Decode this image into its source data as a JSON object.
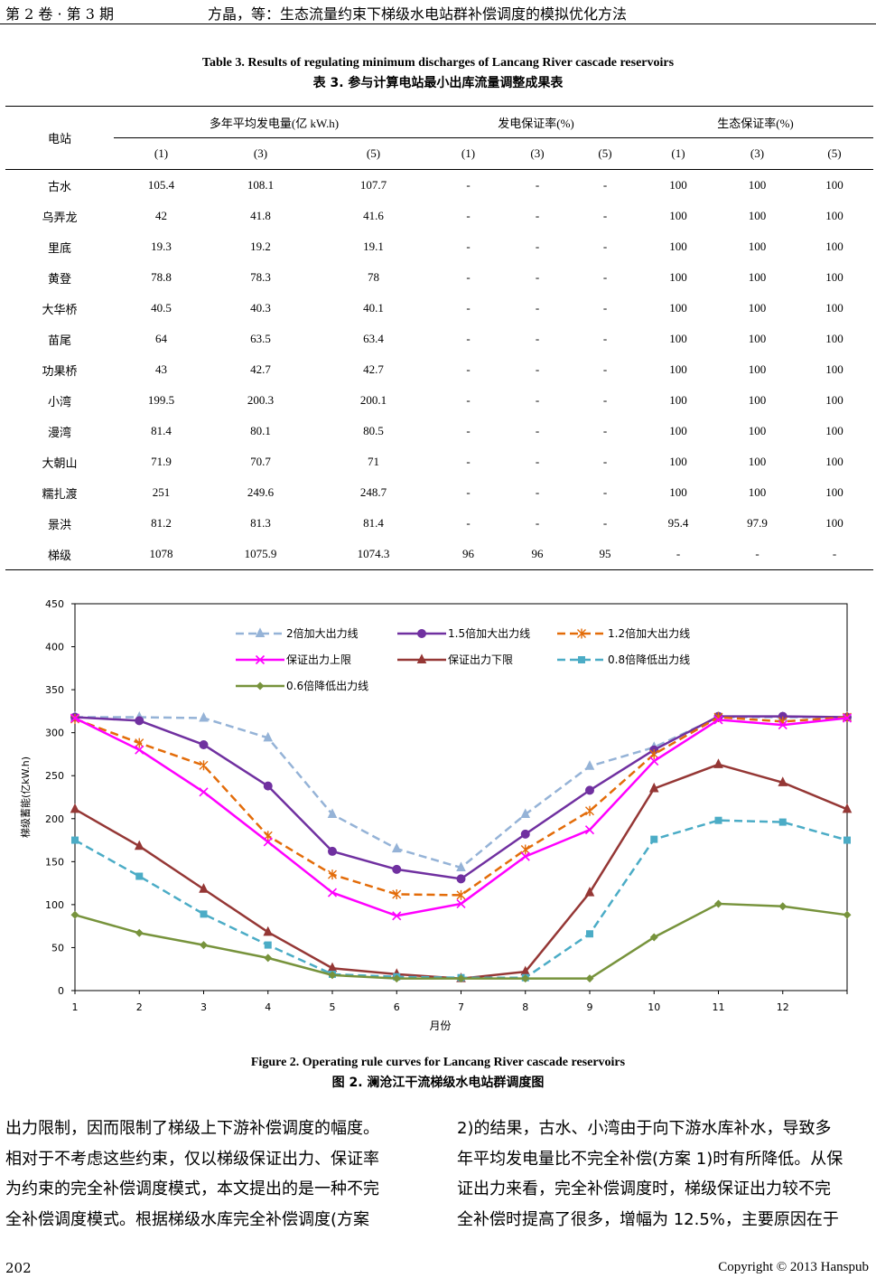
{
  "header": {
    "volume": "第 2 卷 · 第 3 期",
    "running_title": "方晶，等：生态流量约束下梯级水电站群补偿调度的模拟优化方法"
  },
  "table": {
    "caption_en": "Table 3. Results of regulating minimum discharges of Lancang River cascade reservoirs",
    "caption_zh": "表 3. 参与计算电站最小出库流量调整成果表",
    "station_header": "电站",
    "group_headers": [
      "多年平均发电量(亿 kW.h)",
      "发电保证率(%)",
      "生态保证率(%)"
    ],
    "sub_headers": [
      "(1)",
      "(3)",
      "(5)",
      "(1)",
      "(3)",
      "(5)",
      "(1)",
      "(3)",
      "(5)"
    ],
    "rows": [
      [
        "古水",
        "105.4",
        "108.1",
        "107.7",
        "-",
        "-",
        "-",
        "100",
        "100",
        "100"
      ],
      [
        "乌弄龙",
        "42",
        "41.8",
        "41.6",
        "-",
        "-",
        "-",
        "100",
        "100",
        "100"
      ],
      [
        "里底",
        "19.3",
        "19.2",
        "19.1",
        "-",
        "-",
        "-",
        "100",
        "100",
        "100"
      ],
      [
        "黄登",
        "78.8",
        "78.3",
        "78",
        "-",
        "-",
        "-",
        "100",
        "100",
        "100"
      ],
      [
        "大华桥",
        "40.5",
        "40.3",
        "40.1",
        "-",
        "-",
        "-",
        "100",
        "100",
        "100"
      ],
      [
        "苗尾",
        "64",
        "63.5",
        "63.4",
        "-",
        "-",
        "-",
        "100",
        "100",
        "100"
      ],
      [
        "功果桥",
        "43",
        "42.7",
        "42.7",
        "-",
        "-",
        "-",
        "100",
        "100",
        "100"
      ],
      [
        "小湾",
        "199.5",
        "200.3",
        "200.1",
        "-",
        "-",
        "-",
        "100",
        "100",
        "100"
      ],
      [
        "漫湾",
        "81.4",
        "80.1",
        "80.5",
        "-",
        "-",
        "-",
        "100",
        "100",
        "100"
      ],
      [
        "大朝山",
        "71.9",
        "70.7",
        "71",
        "-",
        "-",
        "-",
        "100",
        "100",
        "100"
      ],
      [
        "糯扎渡",
        "251",
        "249.6",
        "248.7",
        "-",
        "-",
        "-",
        "100",
        "100",
        "100"
      ],
      [
        "景洪",
        "81.2",
        "81.3",
        "81.4",
        "-",
        "-",
        "-",
        "95.4",
        "97.9",
        "100"
      ],
      [
        "梯级",
        "1078",
        "1075.9",
        "1074.3",
        "96",
        "96",
        "95",
        "-",
        "-",
        "-"
      ]
    ]
  },
  "figure": {
    "caption_en": "Figure 2. Operating rule curves for Lancang River cascade reservoirs",
    "caption_zh": "图 2. 澜沧江干流梯级水电站群调度图"
  },
  "chart_data": {
    "type": "line",
    "xlabel": "月份",
    "ylabel": "梯级蓄能(亿kW.h)",
    "ylim": [
      0,
      450
    ],
    "yticks": [
      "0",
      "50",
      "100",
      "150",
      "200",
      "250",
      "300",
      "350",
      "400",
      "450"
    ],
    "xticks": [
      "1",
      "2",
      "3",
      "4",
      "5",
      "6",
      "7",
      "8",
      "9",
      "10",
      "11",
      "12"
    ],
    "x": [
      1,
      2,
      3,
      4,
      5,
      6,
      7,
      8,
      9,
      10,
      11,
      12,
      13
    ],
    "legend_location": "top-center",
    "series": [
      {
        "name": "2倍加大出力线",
        "color": "#95b3d7",
        "dash": "dashed",
        "marker": "triangle",
        "values": [
          318,
          318,
          317,
          294,
          205,
          165,
          143,
          205,
          261,
          283,
          318,
          318,
          318
        ]
      },
      {
        "name": "1.5倍加大出力线",
        "color": "#7030a0",
        "dash": "solid",
        "marker": "circle",
        "values": [
          318,
          314,
          286,
          238,
          162,
          141,
          130,
          182,
          233,
          280,
          319,
          319,
          318
        ]
      },
      {
        "name": "1.2倍加大出力线",
        "color": "#e36c09",
        "dash": "dashed",
        "marker": "asterisk",
        "values": [
          316,
          288,
          262,
          180,
          135,
          112,
          111,
          164,
          209,
          275,
          318,
          313,
          318
        ]
      },
      {
        "name": "保证出力上限",
        "color": "#ff00ff",
        "dash": "solid",
        "marker": "x",
        "values": [
          317,
          280,
          231,
          173,
          114,
          87,
          101,
          156,
          187,
          267,
          315,
          309,
          317
        ]
      },
      {
        "name": "保证出力下限",
        "color": "#953735",
        "dash": "solid",
        "marker": "triangle",
        "values": [
          211,
          168,
          118,
          68,
          26,
          19,
          14,
          22,
          114,
          235,
          263,
          242,
          211
        ]
      },
      {
        "name": "0.8倍降低出力线",
        "color": "#4bacc6",
        "dash": "dashed",
        "marker": "square",
        "values": [
          175,
          133,
          89,
          53,
          19,
          16,
          15,
          15,
          66,
          176,
          198,
          196,
          175
        ]
      },
      {
        "name": "0.6倍降低出力线",
        "color": "#77933c",
        "dash": "solid",
        "marker": "diamond",
        "values": [
          88,
          67,
          53,
          38,
          18,
          14,
          14,
          14,
          14,
          62,
          101,
          98,
          88
        ]
      }
    ]
  },
  "body": {
    "left_lines": [
      "出力限制，因而限制了梯级上下游补偿调度的幅度。",
      "相对于不考虑这些约束，仅以梯级保证出力、保证率",
      "为约束的完全补偿调度模式，本文提出的是一种不完",
      "全补偿调度模式。根据梯级水库完全补偿调度(方案"
    ],
    "right_lines": [
      "2)的结果，古水、小湾由于向下游水库补水，导致多",
      "年平均发电量比不完全补偿(方案 1)时有所降低。从保",
      "证出力来看，完全补偿调度时，梯级保证出力较不完",
      "全补偿时提高了很多，增幅为 12.5%，主要原因在于"
    ]
  },
  "footer": {
    "page": "202",
    "copyright": "Copyright © 2013 Hanspub"
  }
}
